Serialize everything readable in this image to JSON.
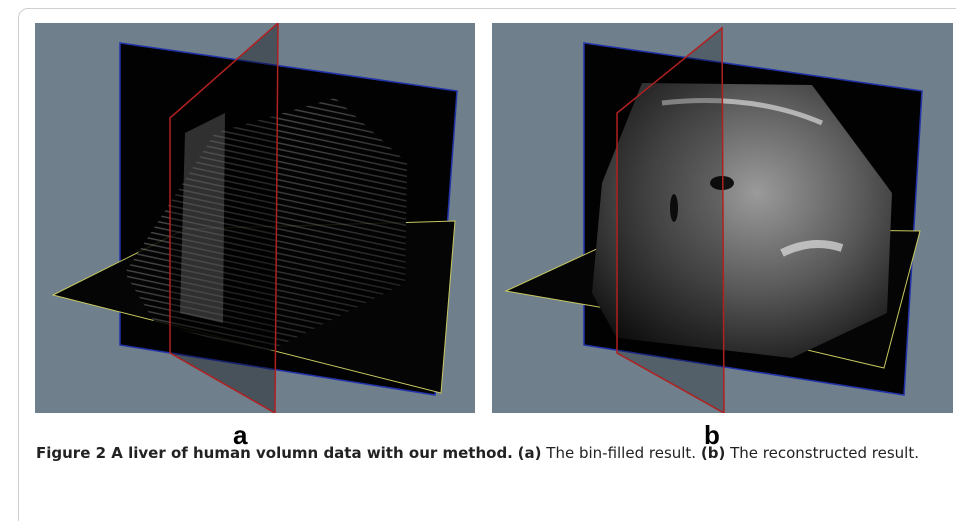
{
  "panels": [
    {
      "label": "a"
    },
    {
      "label": "b"
    }
  ],
  "caption": {
    "title": "Figure 2 A liver of human volumn data with our method.",
    "a_key": "(a)",
    "a_text": "The bin-filled result.",
    "b_key": "(b)",
    "b_text": "The reconstructed result."
  }
}
